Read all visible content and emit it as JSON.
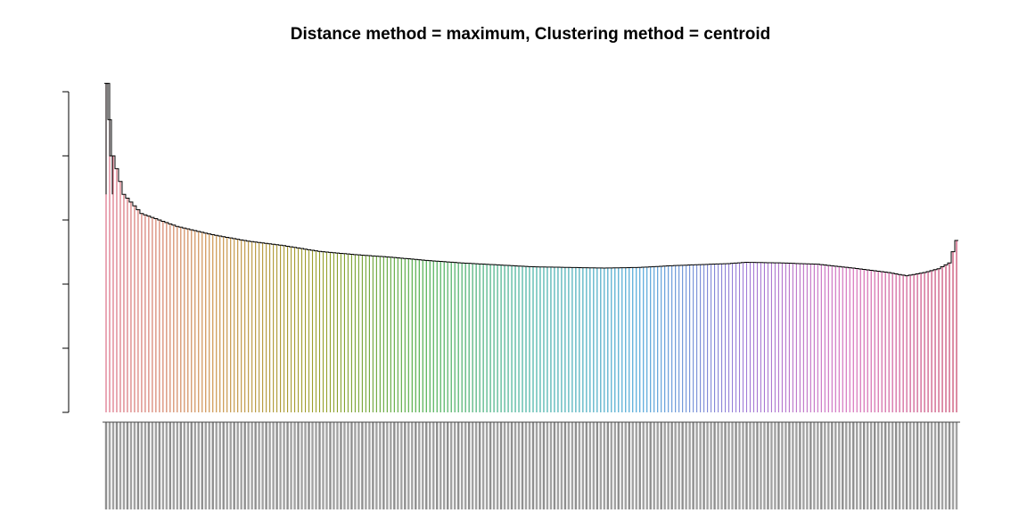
{
  "chart_data": {
    "type": "dendrogram",
    "title": "Distance method = maximum, Clustering method = centroid",
    "xlabel": "",
    "ylabel": "",
    "ylim": [
      0,
      5
    ],
    "y_ticks": [
      0,
      1,
      2,
      3,
      4,
      5
    ],
    "y_tick_labels_visible": false,
    "leaf_count": 240,
    "leaf_labels_legible": false,
    "grid": false,
    "legend": "none",
    "profile_points": [
      [
        0,
        5.13
      ],
      [
        2,
        4.0
      ],
      [
        5,
        3.4
      ],
      [
        10,
        3.1
      ],
      [
        20,
        2.9
      ],
      [
        30,
        2.77
      ],
      [
        40,
        2.67
      ],
      [
        50,
        2.6
      ],
      [
        60,
        2.51
      ],
      [
        70,
        2.46
      ],
      [
        80,
        2.42
      ],
      [
        90,
        2.37
      ],
      [
        100,
        2.33
      ],
      [
        110,
        2.3
      ],
      [
        120,
        2.27
      ],
      [
        130,
        2.26
      ],
      [
        140,
        2.25
      ],
      [
        150,
        2.26
      ],
      [
        160,
        2.29
      ],
      [
        170,
        2.31
      ],
      [
        175,
        2.32
      ],
      [
        180,
        2.34
      ],
      [
        190,
        2.33
      ],
      [
        200,
        2.31
      ],
      [
        210,
        2.25
      ],
      [
        220,
        2.18
      ],
      [
        225,
        2.13
      ],
      [
        230,
        2.18
      ],
      [
        234,
        2.24
      ],
      [
        237,
        2.33
      ],
      [
        239,
        2.68
      ]
    ],
    "colors": {
      "start": "#d9607a",
      "palette": [
        "#d9607a",
        "#c98a3c",
        "#9aa02a",
        "#3da83d",
        "#2fa99a",
        "#3c9fd6",
        "#a07bd8",
        "#d466b8",
        "#c0305a"
      ]
    }
  }
}
